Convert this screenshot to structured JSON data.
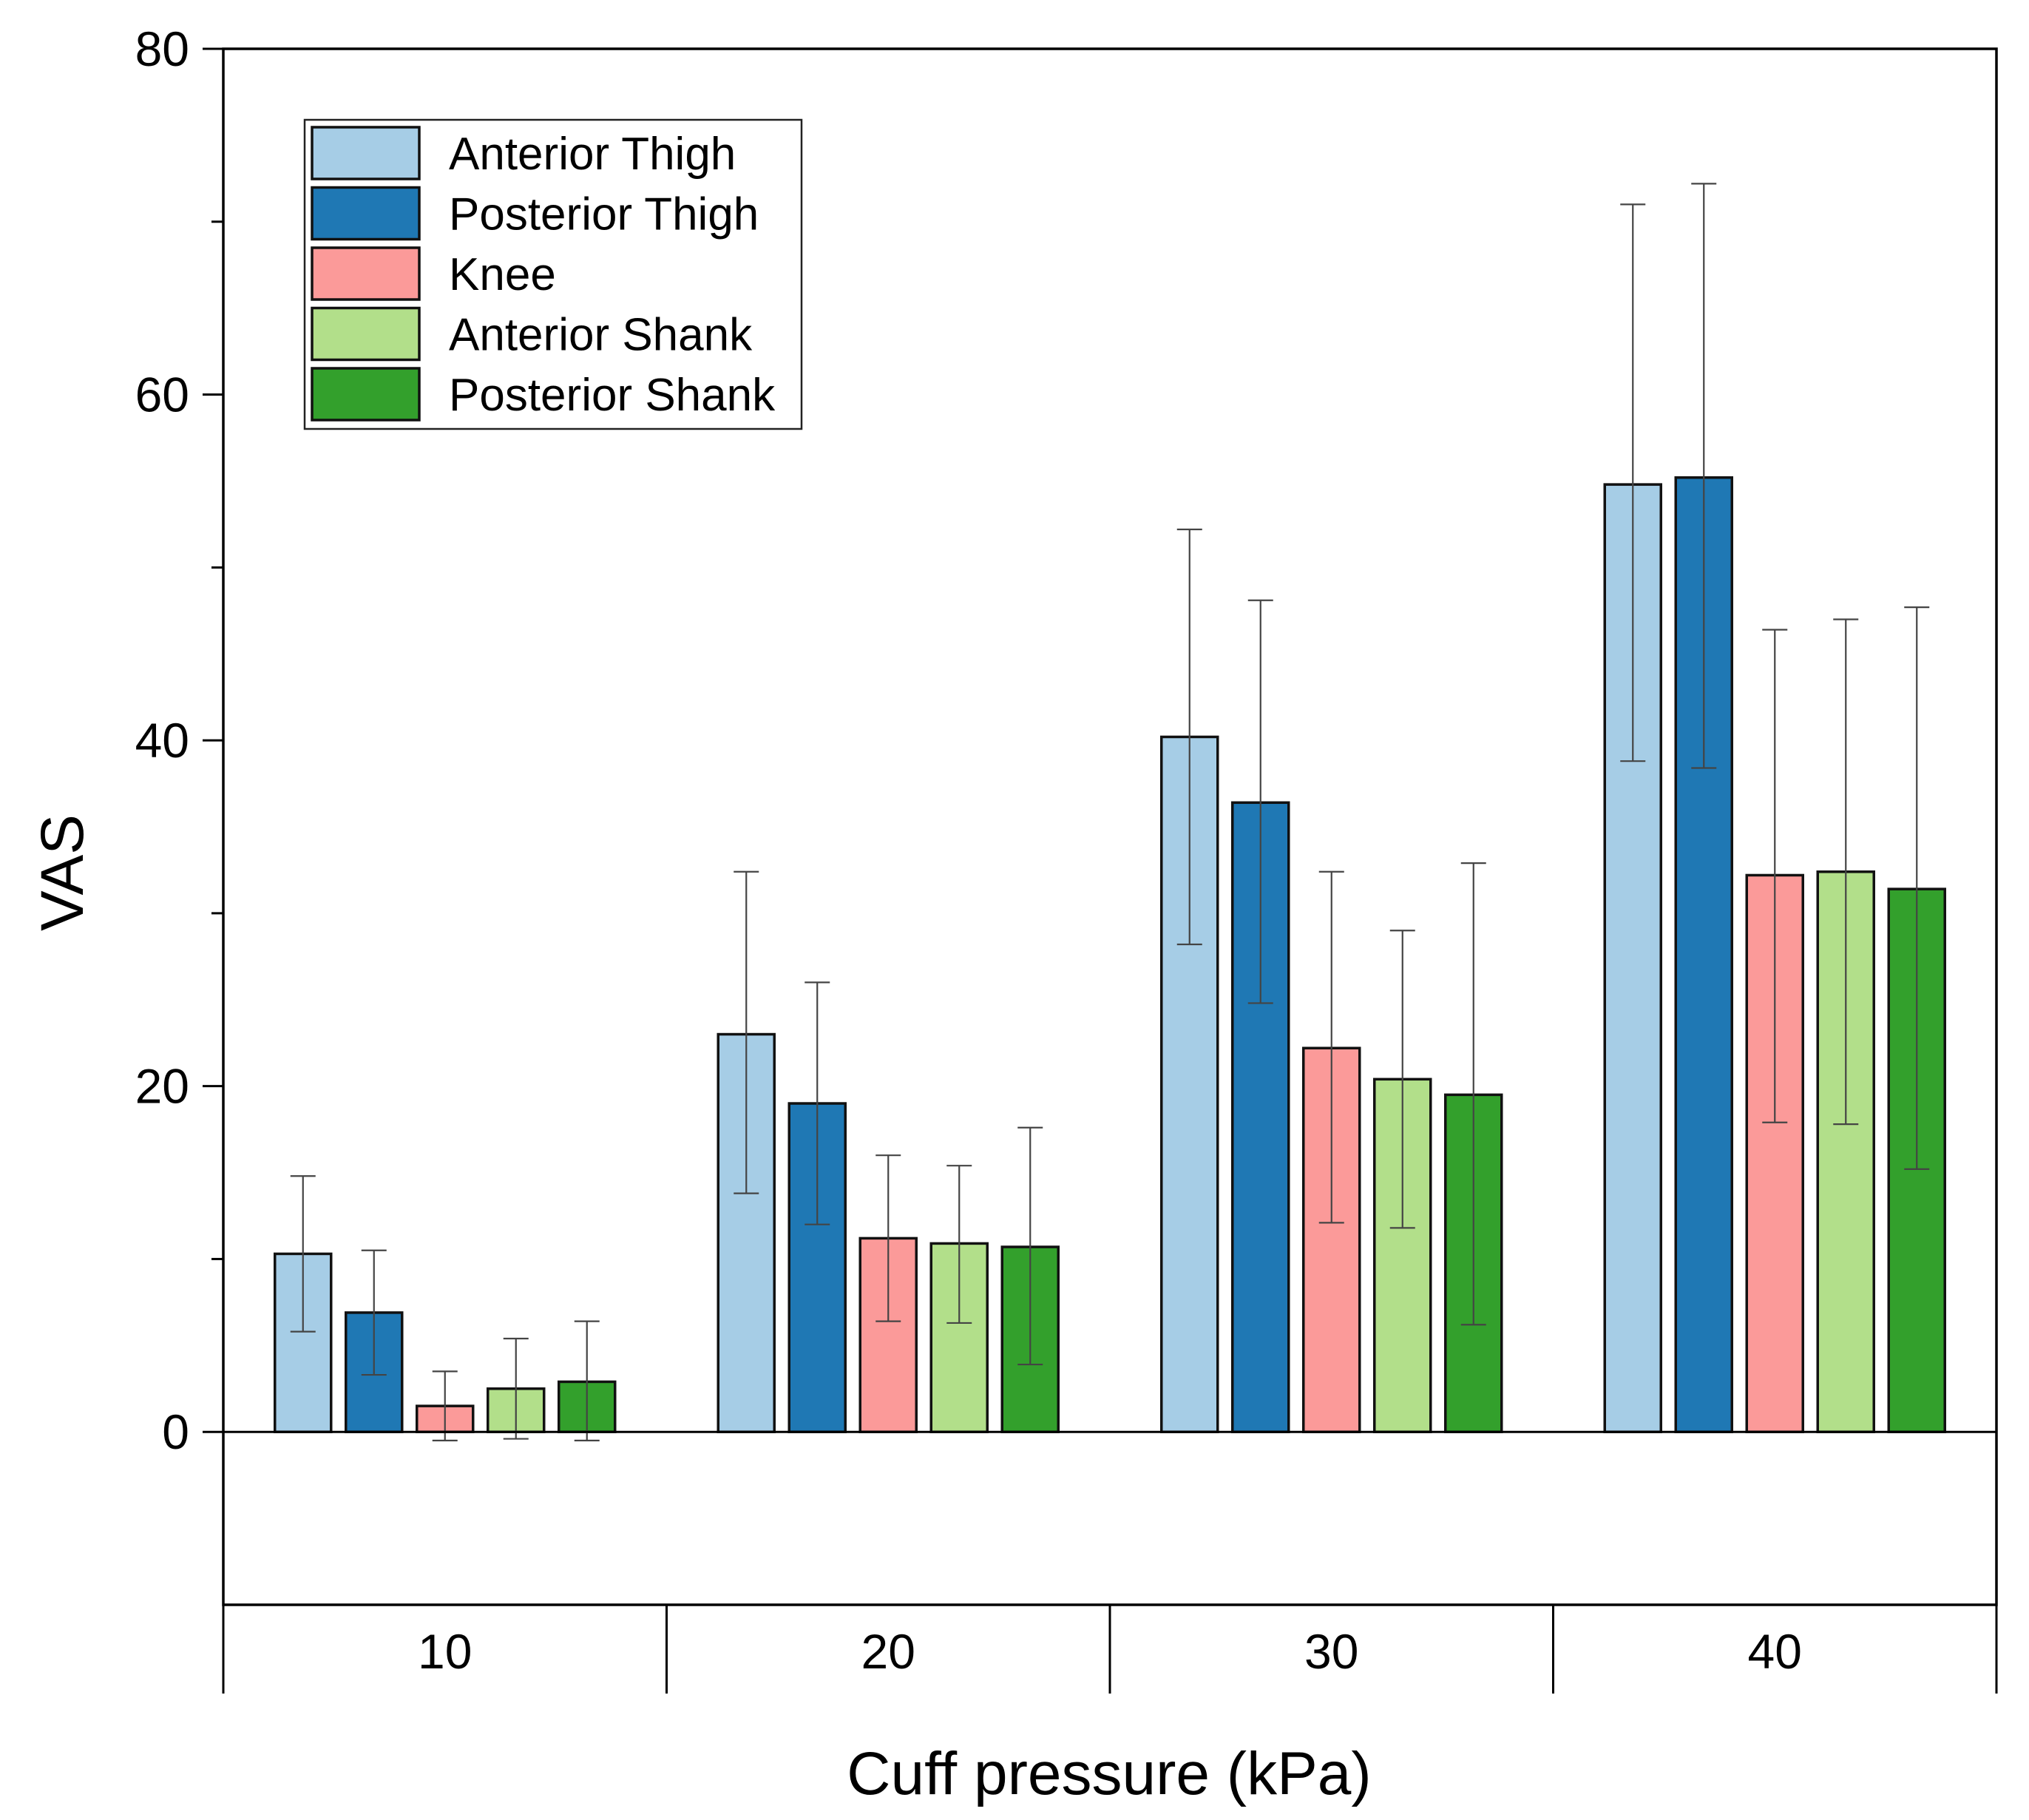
{
  "chart_data": {
    "type": "bar",
    "title": "",
    "xlabel": "Cuff pressure (kPa)",
    "ylabel": "VAS",
    "ylim": [
      -10,
      80
    ],
    "yticks": [
      0,
      20,
      40,
      60,
      80
    ],
    "categories": [
      "10",
      "20",
      "30",
      "40"
    ],
    "legend_position": "top-left",
    "series": [
      {
        "name": "Anterior Thigh",
        "color": "#a6cde6",
        "values": [
          10.3,
          23.0,
          40.2,
          54.8
        ],
        "err_low": [
          5.8,
          13.8,
          28.2,
          38.8
        ],
        "err_high": [
          14.8,
          32.4,
          52.2,
          71.0
        ]
      },
      {
        "name": "Posterior Thigh",
        "color": "#1f78b4",
        "values": [
          6.9,
          19.0,
          36.4,
          55.2
        ],
        "err_low": [
          3.3,
          12.0,
          24.8,
          38.4
        ],
        "err_high": [
          10.5,
          26.0,
          48.1,
          72.2
        ]
      },
      {
        "name": "Knee",
        "color": "#fb9a99",
        "values": [
          1.5,
          11.2,
          22.2,
          32.2
        ],
        "err_low": [
          -0.5,
          6.4,
          12.1,
          17.9
        ],
        "err_high": [
          3.5,
          16.0,
          32.4,
          46.4
        ]
      },
      {
        "name": "Anterior Shank",
        "color": "#b2df8a",
        "values": [
          2.5,
          10.9,
          20.4,
          32.4
        ],
        "err_low": [
          -0.4,
          6.3,
          11.8,
          17.8
        ],
        "err_high": [
          5.4,
          15.4,
          29.0,
          47.0
        ]
      },
      {
        "name": "Posterior Shank",
        "color": "#33a02c",
        "values": [
          2.9,
          10.7,
          19.5,
          31.4
        ],
        "err_low": [
          -0.5,
          3.9,
          6.2,
          15.2
        ],
        "err_high": [
          6.4,
          17.6,
          32.9,
          47.7
        ]
      }
    ]
  }
}
